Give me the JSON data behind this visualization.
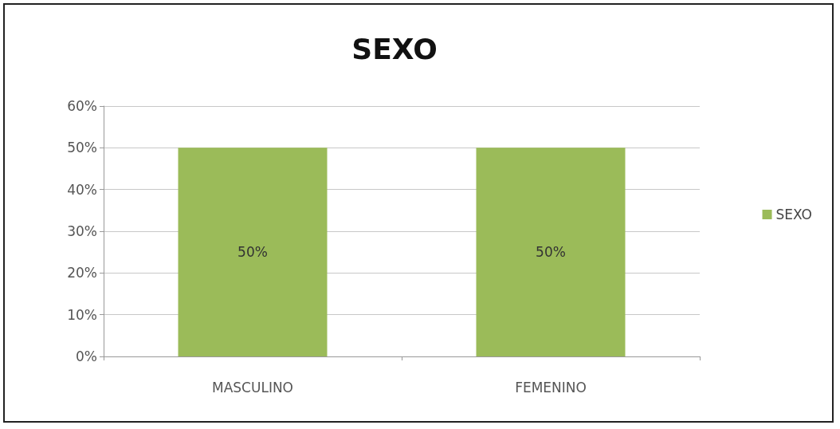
{
  "chart_data": {
    "type": "bar",
    "title": "SEXO",
    "categories": [
      "MASCULINO",
      "FEMENINO"
    ],
    "series": [
      {
        "name": "SEXO",
        "color": "#9bbb59",
        "values": [
          50,
          50
        ],
        "value_labels": [
          "50%",
          "50%"
        ]
      }
    ],
    "ylim": [
      0,
      60
    ],
    "yticks": [
      {
        "value": 0,
        "label": "0%"
      },
      {
        "value": 10,
        "label": "10%"
      },
      {
        "value": 20,
        "label": "20%"
      },
      {
        "value": 30,
        "label": "30%"
      },
      {
        "value": 40,
        "label": "40%"
      },
      {
        "value": 50,
        "label": "50%"
      },
      {
        "value": 60,
        "label": "60%"
      }
    ],
    "grid": "y",
    "legend": "right"
  }
}
